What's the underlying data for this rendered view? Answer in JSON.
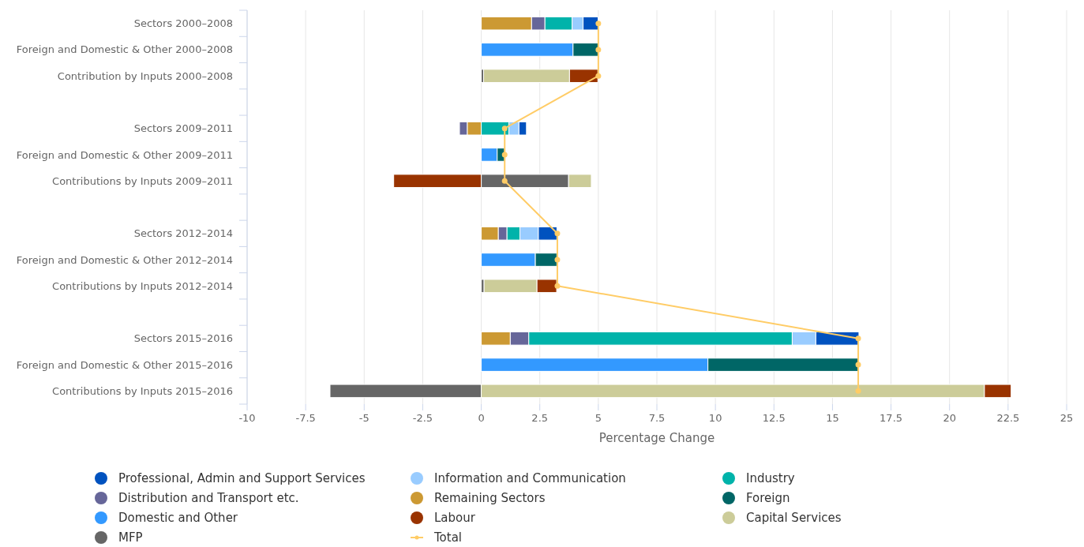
{
  "chart_data": {
    "type": "bar",
    "orientation": "horizontal",
    "stacked": true,
    "xlabel": "Percentage Change",
    "categories": [
      "Sectors 2000–2008",
      "Foreign and Domestic & Other 2000–2008",
      "Contribution by Inputs 2000–2008",
      null,
      "Sectors 2009–2011",
      "Foreign and Domestic & Other 2009–2011",
      "Contributions by Inputs 2009–2011",
      null,
      "Sectors 2012–2014",
      "Foreign and Domestic & Other 2012–2014",
      "Contributions by Inputs 2012–2014",
      null,
      "Sectors 2015–2016",
      "Foreign and Domestic & Other 2015–2016",
      "Contributions by Inputs 2015–2016"
    ],
    "xlim": [
      -10,
      25
    ],
    "xticks": [
      -10,
      -7.5,
      -5,
      -2.5,
      0,
      2.5,
      5,
      7.5,
      10,
      12.5,
      15,
      17.5,
      20,
      22.5,
      25
    ],
    "grid": "x",
    "legend": "bottom",
    "series": [
      {
        "name": "MFP",
        "color": "#666666",
        "values": [
          null,
          null,
          0.1,
          null,
          null,
          null,
          3.73,
          null,
          null,
          null,
          0.12,
          null,
          null,
          null,
          -6.46
        ]
      },
      {
        "name": "Capital Services",
        "color": "#cccc99",
        "values": [
          null,
          null,
          3.67,
          null,
          null,
          null,
          0.97,
          null,
          null,
          null,
          2.26,
          null,
          null,
          null,
          21.49
        ]
      },
      {
        "name": "Labour",
        "color": "#993300",
        "values": [
          null,
          null,
          1.21,
          null,
          null,
          null,
          -3.74,
          null,
          null,
          null,
          0.84,
          null,
          null,
          null,
          1.14
        ]
      },
      {
        "name": "Domestic and Other",
        "color": "#3399ff",
        "values": [
          null,
          3.92,
          null,
          null,
          null,
          0.68,
          null,
          null,
          null,
          2.31,
          null,
          null,
          null,
          9.68,
          null
        ]
      },
      {
        "name": "Foreign",
        "color": "#006666",
        "values": [
          null,
          1.07,
          null,
          null,
          null,
          0.32,
          null,
          null,
          null,
          0.92,
          null,
          null,
          null,
          6.43,
          null
        ]
      },
      {
        "name": "Remaining Sectors",
        "color": "#cc9933",
        "values": [
          2.15,
          null,
          null,
          null,
          -0.6,
          null,
          null,
          null,
          0.73,
          null,
          null,
          null,
          1.24,
          null,
          null
        ]
      },
      {
        "name": "Distribution and Transport etc.",
        "color": "#666699",
        "values": [
          0.57,
          null,
          null,
          null,
          -0.33,
          null,
          null,
          null,
          0.37,
          null,
          null,
          null,
          0.79,
          null,
          null
        ]
      },
      {
        "name": "Industry",
        "color": "#00b3aa",
        "values": [
          1.16,
          null,
          null,
          null,
          1.18,
          null,
          null,
          null,
          0.55,
          null,
          null,
          null,
          11.25,
          null,
          null
        ]
      },
      {
        "name": "Information and Communication",
        "color": "#99ccff",
        "values": [
          0.47,
          null,
          null,
          null,
          0.43,
          null,
          null,
          null,
          0.79,
          null,
          null,
          null,
          1.01,
          null,
          null
        ]
      },
      {
        "name": "Professional, Admin and Support Services",
        "color": "#0052bf",
        "values": [
          0.64,
          null,
          null,
          null,
          0.32,
          null,
          null,
          null,
          0.79,
          null,
          null,
          null,
          1.84,
          null,
          null
        ]
      },
      {
        "name": "Total",
        "type": "line",
        "marker": "circle",
        "color": "#ffcc66",
        "values": [
          5.0,
          5.0,
          5.0,
          null,
          1.0,
          1.0,
          1.0,
          null,
          3.25,
          3.25,
          3.25,
          null,
          16.1,
          16.1,
          16.1
        ]
      }
    ]
  }
}
